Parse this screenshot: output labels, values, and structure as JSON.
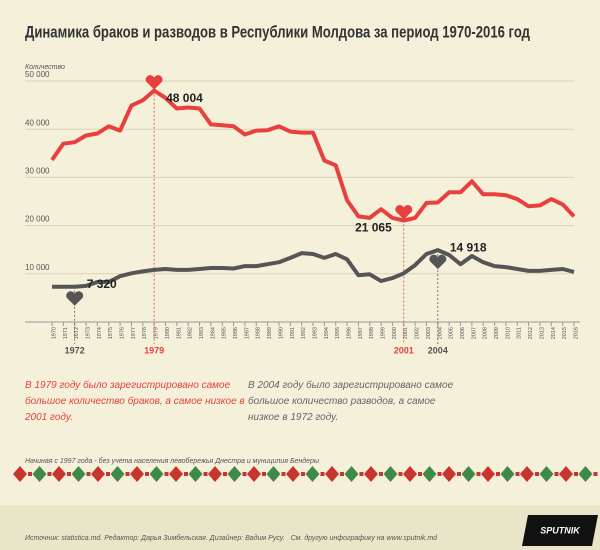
{
  "chart_data": {
    "type": "line",
    "title": "Динамика браков и разводов в Республики Молдова за период 1970-2016 год",
    "y_label": "Количество",
    "x": [
      1970,
      1971,
      1972,
      1973,
      1974,
      1975,
      1976,
      1977,
      1978,
      1979,
      1980,
      1981,
      1982,
      1983,
      1984,
      1985,
      1986,
      1987,
      1988,
      1989,
      1990,
      1991,
      1992,
      1993,
      1994,
      1995,
      1996,
      1997,
      1998,
      1999,
      2000,
      2001,
      2002,
      2003,
      2004,
      2005,
      2006,
      2007,
      2008,
      2009,
      2010,
      2011,
      2012,
      2013,
      2014,
      2015,
      2016
    ],
    "xlim": [
      1970,
      2016
    ],
    "xticks": [
      1970,
      1971,
      1972,
      1973,
      1974,
      1975,
      1976,
      1977,
      1978,
      1979,
      1980,
      1981,
      1982,
      1983,
      1984,
      1985,
      1986,
      1987,
      1988,
      1989,
      1990,
      1991,
      1992,
      1993,
      1994,
      1995,
      1996,
      1997,
      1998,
      1999,
      2000,
      2001,
      2002,
      2003,
      2004,
      2005,
      2006,
      2007,
      2008,
      2009,
      2010,
      2011,
      2012,
      2013,
      2014,
      2015,
      2016
    ],
    "ylim": [
      0,
      50000
    ],
    "yticks": [
      {
        "value": 10000,
        "label": "10 000"
      },
      {
        "value": 20000,
        "label": "20 000"
      },
      {
        "value": 30000,
        "label": "30 000"
      },
      {
        "value": 40000,
        "label": "40 000"
      },
      {
        "value": 50000,
        "label": "50 000"
      }
    ],
    "grid": true,
    "series": [
      {
        "color": "#e8403d",
        "values": [
          33600,
          37000,
          37300,
          38700,
          39100,
          40600,
          39700,
          44900,
          46000,
          48004,
          46500,
          44300,
          44500,
          44300,
          41000,
          40800,
          40600,
          38900,
          39700,
          39800,
          40600,
          39500,
          39300,
          39300,
          33500,
          32500,
          25300,
          21900,
          21600,
          23400,
          21600,
          21065,
          21600,
          24700,
          24800,
          26900,
          26900,
          29200,
          26500,
          26500,
          26300,
          25500,
          24000,
          24200,
          25500,
          24400,
          21900
        ],
        "value_labels": [
          null,
          null,
          null,
          null,
          null,
          null,
          null,
          null,
          null,
          "48 004",
          null,
          null,
          null,
          null,
          null,
          null,
          null,
          null,
          null,
          null,
          null,
          null,
          null,
          null,
          null,
          null,
          null,
          null,
          null,
          null,
          null,
          "21 065",
          null,
          null,
          null,
          null,
          null,
          null,
          null,
          null,
          null,
          null,
          null,
          null,
          null,
          null,
          null
        ]
      },
      {
        "color": "#555555",
        "values": [
          7300,
          7300,
          7320,
          7500,
          8300,
          8300,
          9500,
          10100,
          10500,
          10800,
          11000,
          10800,
          10800,
          11000,
          11200,
          11200,
          11100,
          11600,
          11600,
          12000,
          12400,
          13300,
          14300,
          14100,
          13300,
          14100,
          13000,
          9700,
          9900,
          8500,
          9100,
          10100,
          11800,
          14100,
          14918,
          13900,
          12000,
          13700,
          12400,
          11600,
          11400,
          11000,
          10600,
          10600,
          10800,
          11000,
          10400
        ],
        "value_labels": [
          null,
          null,
          "7 320",
          null,
          null,
          null,
          null,
          null,
          null,
          null,
          null,
          null,
          null,
          null,
          null,
          null,
          null,
          null,
          null,
          null,
          null,
          null,
          null,
          null,
          null,
          null,
          null,
          null,
          null,
          null,
          null,
          null,
          null,
          null,
          "14 918",
          null,
          null,
          null,
          null,
          null,
          null,
          null,
          null,
          null,
          null,
          null,
          null
        ]
      }
    ],
    "notes": [
      "В 1979 году было зарегистрировано самое большое количество браков, а самое низкое в 2001 году.",
      "В 2004 году было зарегистрировано самое большое количество разводов, а самое низкое в 1972 году."
    ],
    "footnote": "Начиная с 1997 года - без учета населения левобережья Днестра и муниципия Бендеры",
    "source": "Источник: statistica.md. Редактор: Дарья Зимбельская. Дизайнер: Вадим Русу.   См. другую инфографику на www.sputnik.md",
    "logo": "SPUTNIK"
  }
}
